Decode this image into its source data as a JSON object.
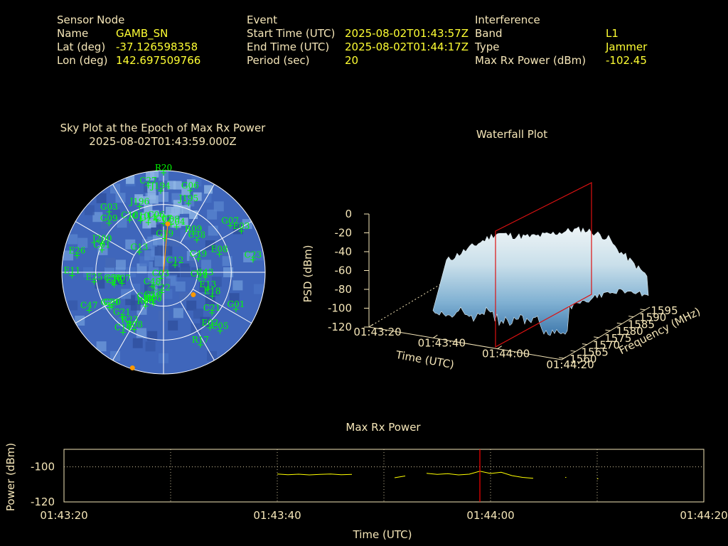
{
  "sensor": {
    "heading": "Sensor Node",
    "name_label": "Name",
    "name": "GAMB_SN",
    "lat_label": "Lat (deg)",
    "lat": "-37.126598358",
    "lon_label": "Lon (deg)",
    "lon": "142.697509766"
  },
  "event": {
    "heading": "Event",
    "start_label": "Start Time (UTC)",
    "start": "2025-08-02T01:43:57Z",
    "end_label": "End Time (UTC)",
    "end": "2025-08-02T01:44:17Z",
    "period_label": "Period (sec)",
    "period": "20"
  },
  "interference": {
    "heading": "Interference",
    "band_label": "Band",
    "band": "L1",
    "type_label": "Type",
    "type": "Jammer",
    "power_label": "Max Rx Power (dBm)",
    "power": "-102.45"
  },
  "colors": {
    "text": "#f5e6b8",
    "value": "#ffff33",
    "satellite": "#00ff00",
    "marker": "#ff9900",
    "cursor": "#ff0000",
    "trace": "#ffff00"
  },
  "skyplot": {
    "title": "Sky Plot at the Epoch of Max Rx Power",
    "subtitle": "2025-08-02T01:43:59.000Z",
    "satellites": [
      {
        "id": "R20",
        "az": 0,
        "el": 2
      },
      {
        "id": "C27",
        "az": 350,
        "el": 12
      },
      {
        "id": "J194",
        "az": 358,
        "el": 18
      },
      {
        "id": "G06",
        "az": 18,
        "el": 14
      },
      {
        "id": "J195",
        "az": 20,
        "el": 25
      },
      {
        "id": "J196",
        "az": 340,
        "el": 28
      },
      {
        "id": "G03",
        "az": 318,
        "el": 18
      },
      {
        "id": "G09",
        "az": 312,
        "el": 25
      },
      {
        "id": "C16",
        "az": 327,
        "el": 35
      },
      {
        "id": "C10",
        "az": 336,
        "el": 40
      },
      {
        "id": "G11",
        "az": 343,
        "el": 44
      },
      {
        "id": "C06",
        "az": 352,
        "el": 43
      },
      {
        "id": "C08",
        "az": 9,
        "el": 47
      },
      {
        "id": "C07",
        "az": 0,
        "el": 47
      },
      {
        "id": "C04",
        "az": 16,
        "el": 48
      },
      {
        "id": "J200",
        "az": 295,
        "el": 30
      },
      {
        "id": "C01",
        "az": 290,
        "el": 32
      },
      {
        "id": "E26",
        "az": 281,
        "el": 12
      },
      {
        "id": "G19",
        "az": 2,
        "el": 60
      },
      {
        "id": "R09",
        "az": 38,
        "el": 47
      },
      {
        "id": "C38",
        "az": 46,
        "el": 49
      },
      {
        "id": "C49",
        "az": 69,
        "el": 57
      },
      {
        "id": "E08",
        "az": 72,
        "el": 38
      },
      {
        "id": "G07",
        "az": 55,
        "el": 18
      },
      {
        "id": "E03",
        "az": 62,
        "el": 12
      },
      {
        "id": "C23",
        "az": 82,
        "el": 10
      },
      {
        "id": "G13",
        "az": 310,
        "el": 62
      },
      {
        "id": "C12",
        "az": 58,
        "el": 78
      },
      {
        "id": "C50",
        "az": 258,
        "el": 44
      },
      {
        "id": "R07",
        "az": 255,
        "el": 52
      },
      {
        "id": "E11",
        "az": 268,
        "el": 9
      },
      {
        "id": "E25",
        "az": 262,
        "el": 28
      },
      {
        "id": "E15",
        "az": 256,
        "el": 45
      },
      {
        "id": "C48",
        "az": 219,
        "el": 74
      },
      {
        "id": "C03",
        "az": 205,
        "el": 84
      },
      {
        "id": "C46",
        "az": 100,
        "el": 58
      },
      {
        "id": "C43",
        "az": 97,
        "el": 53
      },
      {
        "id": "E13",
        "az": 111,
        "el": 48
      },
      {
        "id": "E18",
        "az": 116,
        "el": 42
      },
      {
        "id": "C22",
        "az": 185,
        "el": 72
      },
      {
        "id": "G01",
        "az": 117,
        "el": 18
      },
      {
        "id": "C21",
        "az": 130,
        "el": 34
      },
      {
        "id": "C47",
        "az": 243,
        "el": 16
      },
      {
        "id": "G20",
        "az": 236,
        "el": 35
      },
      {
        "id": "G29",
        "az": 237,
        "el": 33
      },
      {
        "id": "C09",
        "az": 212,
        "el": 60
      },
      {
        "id": "R08",
        "az": 208,
        "el": 56
      },
      {
        "id": "C36",
        "az": 202,
        "el": 64
      },
      {
        "id": "R00",
        "az": 198,
        "el": 61
      },
      {
        "id": "G21",
        "az": 223,
        "el": 36
      },
      {
        "id": "R23",
        "az": 213,
        "el": 35
      },
      {
        "id": "C14",
        "az": 214,
        "el": 26
      },
      {
        "id": "R08",
        "az": 207,
        "el": 33
      },
      {
        "id": "E02",
        "az": 140,
        "el": 26
      },
      {
        "id": "C05",
        "az": 136,
        "el": 18
      },
      {
        "id": "R17",
        "az": 153,
        "el": 18
      }
    ],
    "markers": [
      {
        "az": 5,
        "el": 47
      },
      {
        "az": 127,
        "el": 57
      },
      {
        "az": 198,
        "el": 1
      }
    ]
  },
  "waterfall": {
    "title": "Waterfall Plot",
    "zlabel": "PSD (dBm)",
    "xlabel": "Time (UTC)",
    "ylabel": "Frequency (MHz)",
    "z_ticks": [
      "0",
      "-20",
      "-40",
      "-60",
      "-80",
      "-100",
      "-120"
    ],
    "time_ticks": [
      "01:43:20",
      "01:43:40",
      "01:44:00",
      "01:44:20"
    ],
    "freq_ticks": [
      "1560",
      "1565",
      "1570",
      "1575",
      "1580",
      "1585",
      "1590",
      "1595"
    ]
  },
  "maxpower": {
    "title": "Max Rx Power",
    "ylabel": "Power (dBm)",
    "xlabel": "Time (UTC)",
    "y_ticks": [
      "-100",
      "-120"
    ],
    "x_ticks": [
      "01:43:20",
      "01:43:40",
      "01:44:00",
      "01:44:20"
    ]
  },
  "chart_data": [
    {
      "type": "line",
      "title": "Max Rx Power",
      "xlabel": "Time (UTC)",
      "ylabel": "Power (dBm)",
      "ylim": [
        -120,
        -90
      ],
      "xlim": [
        "01:43:20",
        "01:44:20"
      ],
      "cursor": "01:43:59",
      "grid": true,
      "series": [
        {
          "x": [
            "01:43:40",
            "01:43:41",
            "01:43:42",
            "01:43:43",
            "01:43:44",
            "01:43:45",
            "01:43:46",
            "01:43:47"
          ],
          "values": [
            -104.1,
            -104.5,
            -104.2,
            -104.6,
            -104.3,
            -104.1,
            -104.5,
            -104.3
          ]
        },
        {
          "x": [
            "01:43:51",
            "01:43:52"
          ],
          "values": [
            -106.2,
            -105.2
          ]
        },
        {
          "x": [
            "01:43:54",
            "01:43:55",
            "01:43:56",
            "01:43:57",
            "01:43:58",
            "01:43:59",
            "01:44:00",
            "01:44:01",
            "01:44:02",
            "01:44:03",
            "01:44:04"
          ],
          "values": [
            -103.7,
            -104.3,
            -103.9,
            -104.6,
            -104.2,
            -102.5,
            -103.8,
            -103.1,
            -105.0,
            -106.0,
            -106.5
          ]
        },
        {
          "x": [
            "01:44:07"
          ],
          "values": [
            -106.0
          ]
        },
        {
          "x": [
            "01:44:10"
          ],
          "values": [
            -106.8
          ]
        }
      ]
    }
  ]
}
